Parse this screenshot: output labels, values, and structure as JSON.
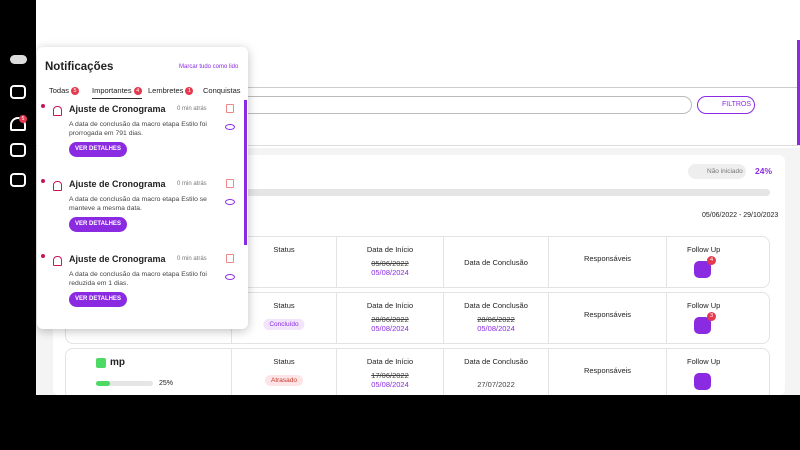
{
  "sidebar": {
    "notification_badge": "5"
  },
  "notifications_panel": {
    "title": "Notificações",
    "mark_all_read": "Marcar tudo como lido",
    "tabs": [
      {
        "label": "Todas",
        "badge": "5"
      },
      {
        "label": "Importantes",
        "badge": "4"
      },
      {
        "label": "Lembretes",
        "badge": "1"
      },
      {
        "label": "Conquistas"
      }
    ],
    "items": [
      {
        "title": "Ajuste de Cronograma",
        "time": "0 min atrás",
        "text": "A data de conclusão da macro etapa Estilo foi prorrogada em 791 dias.",
        "button": "VER DETALHES"
      },
      {
        "title": "Ajuste de Cronograma",
        "time": "0 min atrás",
        "text": "A data de conclusão da macro etapa Estilo se manteve a mesma data.",
        "button": "VER DETALHES"
      },
      {
        "title": "Ajuste de Cronograma",
        "time": "0 min atrás",
        "text": "A data de conclusão da macro etapa Estilo foi reduzida em 1 dias.",
        "button": "VER DETALHES"
      }
    ]
  },
  "toolbar": {
    "filters": "FILTROS"
  },
  "project": {
    "status": "Não iniciado",
    "progress": "24%",
    "date_range": "05/06/2022 - 29/10/2023"
  },
  "table": {
    "rows": [
      {
        "status_label": "Status",
        "start_label": "Data de Início",
        "start_old": "05/06/2022",
        "start_new": "05/08/2024",
        "end_label": "Data de Conclusão",
        "responsible_label": "Responsáveis",
        "followup_label": "Follow Up",
        "followup_badge": "4"
      },
      {
        "status_label": "Status",
        "status_value": "Concluído",
        "start_label": "Data de Início",
        "start_old": "28/06/2022",
        "start_new": "05/08/2024",
        "end_label": "Data de Conclusão",
        "end_old": "28/06/2022",
        "end_new": "05/08/2024",
        "responsible_label": "Responsáveis",
        "followup_label": "Follow Up",
        "followup_badge": "3"
      },
      {
        "name": "mp",
        "progress": "25%",
        "status_label": "Status",
        "status_value": "Atrasado",
        "start_label": "Data de Início",
        "start_old": "17/06/2022",
        "start_new": "05/08/2024",
        "end_label": "Data de Conclusão",
        "end_new": "27/07/2022",
        "responsible_label": "Responsáveis",
        "followup_label": "Follow Up"
      }
    ]
  }
}
